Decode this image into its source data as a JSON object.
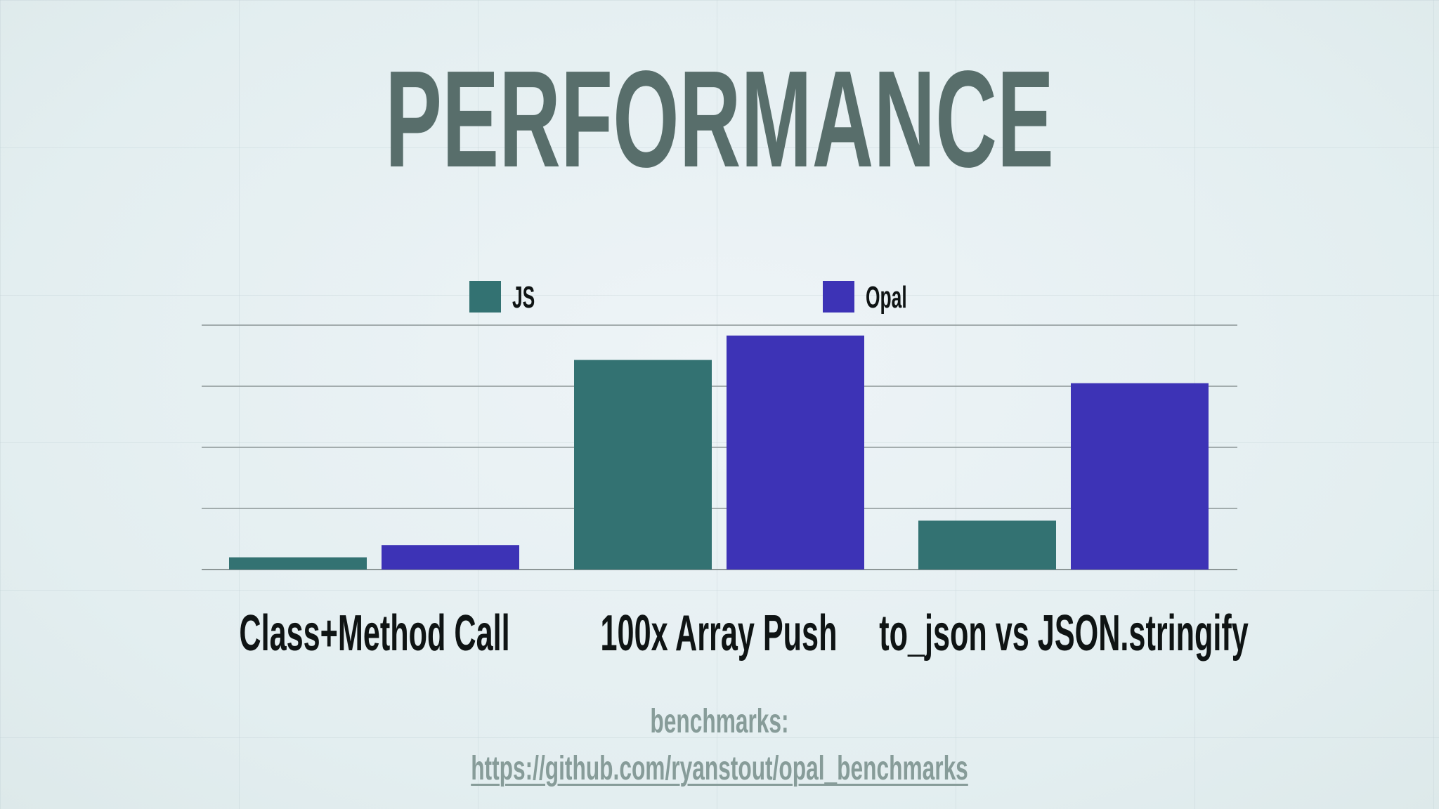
{
  "slide": {
    "title": "PERFORMANCE",
    "footer_label": "benchmarks:",
    "footer_link": "https://github.com/ryanstout/opal_benchmarks"
  },
  "colors": {
    "title": "#586e6b",
    "js": "#337272",
    "opal": "#3d33b6",
    "gridline": "#8c9696",
    "footer": "#879c99"
  },
  "chart_data": {
    "type": "bar",
    "title": "",
    "xlabel": "",
    "ylabel": "",
    "categories": [
      "Class+Method Call",
      "100x Array Push",
      "to_json vs JSON.stringify"
    ],
    "series": [
      {
        "name": "JS",
        "values": [
          0.2,
          3.43,
          0.8
        ]
      },
      {
        "name": "Opal",
        "values": [
          0.4,
          3.83,
          3.05
        ]
      }
    ],
    "ylim": [
      0,
      4
    ],
    "grid": true,
    "legend": "top-center",
    "y_tick_labels_visible": false
  }
}
